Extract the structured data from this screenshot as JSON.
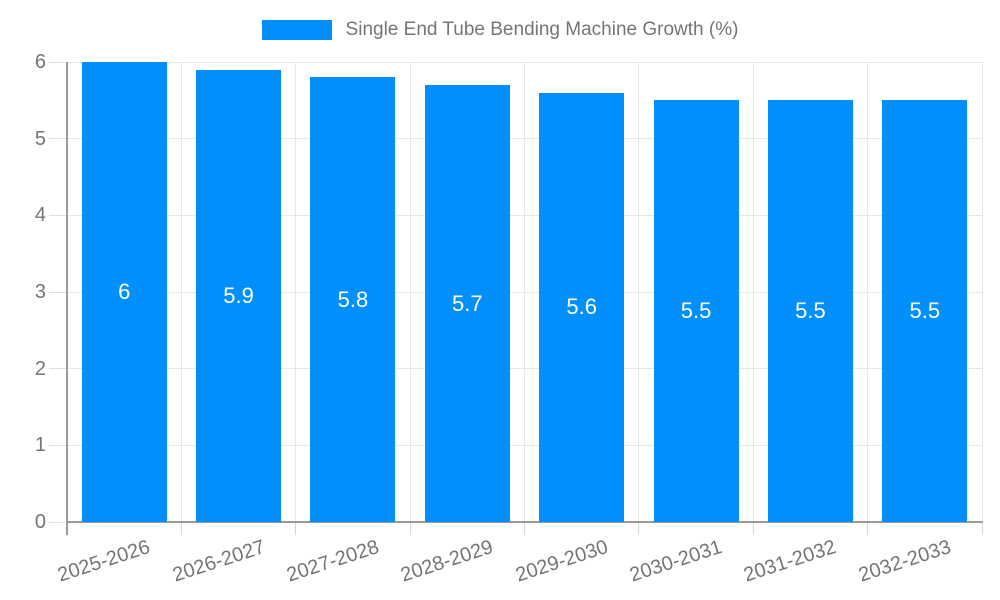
{
  "legend": {
    "label": "Single End Tube Bending Machine Growth (%)"
  },
  "chart_data": {
    "type": "bar",
    "title": "Single End Tube Bending Machine Growth (%)",
    "categories": [
      "2025-2026",
      "2026-2027",
      "2027-2028",
      "2028-2029",
      "2029-2030",
      "2030-2031",
      "2031-2032",
      "2032-2033"
    ],
    "series": [
      {
        "name": "Single End Tube Bending Machine Growth (%)",
        "values": [
          6,
          5.9,
          5.8,
          5.7,
          5.6,
          5.5,
          5.5,
          5.5
        ]
      }
    ],
    "value_labels": [
      "6",
      "5.9",
      "5.8",
      "5.7",
      "5.6",
      "5.5",
      "5.5",
      "5.5"
    ],
    "xlabel": "",
    "ylabel": "",
    "ylim": [
      0,
      6
    ],
    "yticks": [
      0,
      1,
      2,
      3,
      4,
      5,
      6
    ],
    "grid": true,
    "legend_position": "top",
    "colors": {
      "bar": "#008FFB",
      "axis_text": "#757575",
      "value_text": "#ffffff",
      "gridline": "#e7e7e7",
      "axis_line": "#9a9a9a"
    }
  }
}
